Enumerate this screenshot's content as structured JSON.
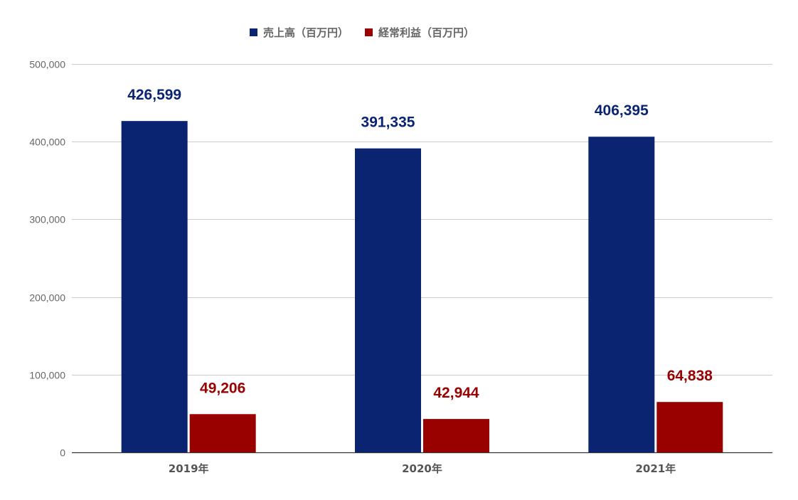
{
  "chart_data": {
    "type": "bar",
    "title": "",
    "xlabel": "",
    "ylabel": "",
    "categories": [
      "2019年",
      "2020年",
      "2021年"
    ],
    "series": [
      {
        "name": "売上高（百万円）",
        "color": "#0a2472",
        "values": [
          426599,
          391335,
          406395
        ],
        "labels": [
          "426,599",
          "391,335",
          "406,395"
        ]
      },
      {
        "name": "経常利益（百万円）",
        "color": "#990000",
        "values": [
          49206,
          42944,
          64838
        ],
        "labels": [
          "49,206",
          "42,944",
          "64,838"
        ]
      }
    ],
    "ylim": [
      0,
      500000
    ],
    "yticks": [
      0,
      100000,
      200000,
      300000,
      400000,
      500000
    ],
    "ytick_labels": [
      "0",
      "100,000",
      "200,000",
      "300,000",
      "400,000",
      "500,000"
    ],
    "grid": true,
    "legend_position": "top-center"
  }
}
